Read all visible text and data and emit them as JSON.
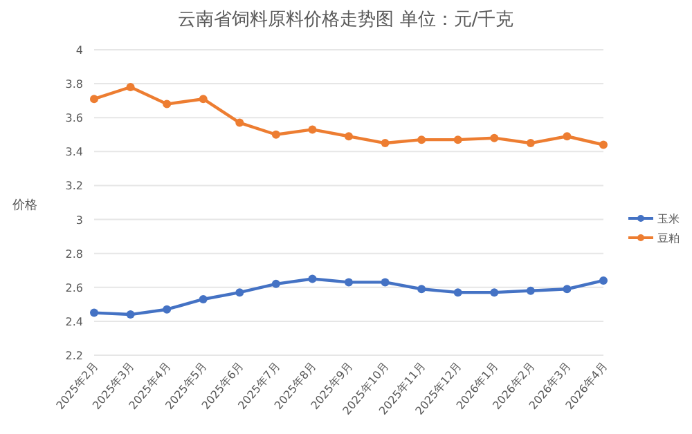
{
  "chart_data": {
    "type": "line",
    "title": "云南省饲料原料价格走势图      单位：元/千克",
    "ylabel": "价格",
    "categories": [
      "2025年2月",
      "2025年3月",
      "2025年4月",
      "2025年5月",
      "2025年6月",
      "2025年7月",
      "2025年8月",
      "2025年9月",
      "2025年10月",
      "2025年11月",
      "2025年12月",
      "2026年1月",
      "2026年2月",
      "2026年3月",
      "2026年4月"
    ],
    "series": [
      {
        "name": "玉米",
        "color": "#4472c4",
        "values": [
          2.45,
          2.44,
          2.47,
          2.53,
          2.57,
          2.62,
          2.65,
          2.63,
          2.63,
          2.59,
          2.57,
          2.57,
          2.58,
          2.59,
          2.64
        ]
      },
      {
        "name": "豆粕",
        "color": "#ed7d31",
        "values": [
          3.71,
          3.78,
          3.68,
          3.71,
          3.57,
          3.5,
          3.53,
          3.49,
          3.45,
          3.47,
          3.47,
          3.48,
          3.45,
          3.49,
          3.44
        ]
      }
    ],
    "ylim": [
      2.2,
      4
    ],
    "yticks": [
      2.2,
      2.4,
      2.6,
      2.8,
      3,
      3.2,
      3.4,
      3.6,
      3.8,
      4
    ],
    "grid": "y",
    "legend": "right",
    "marker": "circle",
    "line_style": "solid"
  }
}
